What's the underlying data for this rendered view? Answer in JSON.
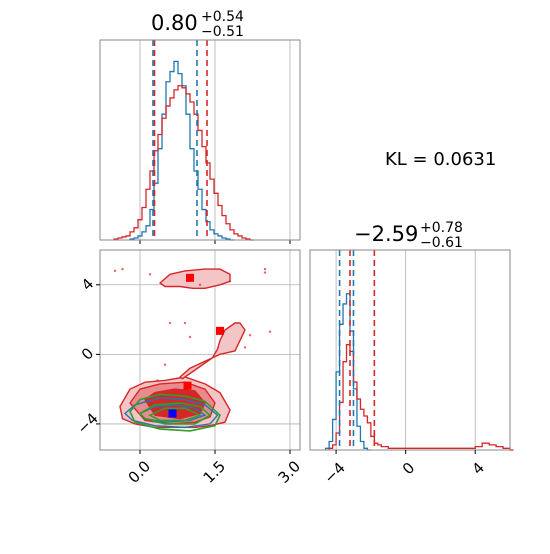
{
  "colors": {
    "red": "#d62728",
    "blue": "#1f77b4",
    "green": "#2ca02c",
    "red_fill_light": "#f4c5c6",
    "red_fill_mid": "#e98a8d",
    "red_fill_dark": "#d62728",
    "square_red": "#ff0000",
    "square_blue": "#0000ff",
    "grid": "#b0b0b0",
    "axis": "#888888"
  },
  "annotation": {
    "kl_text": "KL = 0.0631"
  },
  "chart_data": [
    {
      "type": "line",
      "panel": "marginal-x",
      "title_main": "0.80",
      "title_sup": "+0.54",
      "title_sub": "−0.51",
      "xlim": [
        -0.8,
        3.2
      ],
      "grid": true,
      "series": [
        {
          "color_key": "blue",
          "x": [
            -0.16,
            -0.08,
            0.0,
            0.08,
            0.16,
            0.24,
            0.32,
            0.4,
            0.48,
            0.56,
            0.64,
            0.72,
            0.8,
            0.88,
            0.96,
            1.04,
            1.12,
            1.2,
            1.28,
            1.36,
            1.44,
            1.52,
            1.6,
            1.68,
            1.76,
            1.84
          ],
          "values": [
            0.5,
            1,
            2,
            4,
            7,
            15,
            28,
            45,
            62,
            78,
            83,
            88,
            82,
            76,
            62,
            45,
            34,
            25,
            15,
            9,
            5,
            3,
            2,
            1,
            0.5,
            0
          ]
        },
        {
          "color_key": "red",
          "x": [
            -0.48,
            -0.4,
            -0.32,
            -0.24,
            -0.16,
            -0.08,
            0.0,
            0.08,
            0.16,
            0.24,
            0.32,
            0.4,
            0.48,
            0.56,
            0.64,
            0.72,
            0.8,
            0.88,
            0.96,
            1.04,
            1.12,
            1.2,
            1.28,
            1.36,
            1.44,
            1.52,
            1.6,
            1.68,
            1.76,
            1.84,
            1.92,
            2.0,
            2.08,
            2.16,
            2.24
          ],
          "values": [
            0.5,
            1,
            1.5,
            2,
            4,
            6,
            10,
            16,
            25,
            34,
            44,
            52,
            60,
            66,
            70,
            74,
            76,
            75,
            72,
            68,
            62,
            54,
            46,
            38,
            30,
            23,
            17,
            12,
            8,
            5,
            3,
            2,
            1,
            0.5,
            0
          ]
        }
      ],
      "quantile_lines": [
        {
          "color_key": "blue",
          "x": 0.26
        },
        {
          "color_key": "blue",
          "x": 1.14
        },
        {
          "color_key": "red",
          "x": 0.29
        },
        {
          "color_key": "red",
          "x": 1.34
        }
      ]
    },
    {
      "type": "line",
      "panel": "marginal-y",
      "title_main": "−2.59",
      "title_sup": "+0.78",
      "title_sub": "−0.61",
      "xlim": [
        -5.5,
        6.0
      ],
      "xticks": [
        -4,
        0,
        4
      ],
      "xtick_labels": [
        "−4",
        "0",
        "4"
      ],
      "grid": true,
      "series": [
        {
          "color_key": "blue",
          "x": [
            -4.6,
            -4.4,
            -4.2,
            -4.0,
            -3.8,
            -3.6,
            -3.4,
            -3.2,
            -3.0,
            -2.8,
            -2.6,
            -2.4,
            -2.2
          ],
          "values": [
            1,
            5,
            18,
            46,
            74,
            86,
            92,
            70,
            36,
            14,
            5,
            1,
            0
          ]
        },
        {
          "color_key": "red",
          "x": [
            -4.4,
            -4.2,
            -4.0,
            -3.8,
            -3.6,
            -3.4,
            -3.2,
            -3.0,
            -2.8,
            -2.6,
            -2.4,
            -2.2,
            -2.0,
            -1.8,
            -1.6,
            -1.4,
            -1.0,
            0.0,
            1.0,
            2.0,
            3.0,
            4.0,
            4.4,
            4.8,
            5.2,
            5.6,
            6.0
          ],
          "values": [
            1,
            3,
            10,
            28,
            52,
            62,
            58,
            40,
            30,
            24,
            20,
            16,
            8,
            4,
            3,
            2,
            1,
            1,
            1,
            1,
            1,
            2,
            4,
            3,
            2,
            1,
            0
          ]
        }
      ],
      "quantile_lines": [
        {
          "color_key": "blue",
          "x": -3.8
        },
        {
          "color_key": "blue",
          "x": -3.0
        },
        {
          "color_key": "red",
          "x": -3.2
        },
        {
          "color_key": "red",
          "x": -1.8
        }
      ]
    },
    {
      "type": "scatter",
      "panel": "joint",
      "xlim": [
        -0.8,
        3.2
      ],
      "ylim": [
        -5.5,
        6.0
      ],
      "xticks": [
        0.0,
        1.5,
        3.0
      ],
      "xtick_labels": [
        "0.0",
        "1.5",
        "3.0"
      ],
      "yticks": [
        -4,
        0,
        4
      ],
      "ytick_labels": [
        "−4",
        "0",
        "4"
      ],
      "grid": true,
      "red_contours": [
        {
          "level": "outer",
          "x": [
            -0.4,
            -0.2,
            0.1,
            0.5,
            0.9,
            1.3,
            1.6,
            1.8,
            1.7,
            1.4,
            1.1,
            0.7,
            0.3,
            -0.1,
            -0.35,
            -0.4
          ],
          "y": [
            -3.0,
            -2.0,
            -1.6,
            -1.5,
            -1.3,
            -1.7,
            -2.2,
            -3.2,
            -3.9,
            -4.1,
            -4.2,
            -4.2,
            -4.2,
            -4.0,
            -3.7,
            -3.0
          ]
        },
        {
          "level": "outer",
          "x": [
            0.8,
            1.0,
            1.3,
            1.6,
            1.9,
            2.0,
            2.1,
            2.0,
            1.9,
            1.7,
            1.6,
            1.55,
            1.45,
            1.2,
            1.0,
            0.85,
            0.8
          ],
          "y": [
            -1.3,
            -0.8,
            -0.4,
            0.0,
            0.2,
            0.8,
            1.4,
            1.8,
            1.8,
            1.4,
            0.8,
            0.3,
            -0.2,
            -0.7,
            -1.1,
            -1.4,
            -1.3
          ]
        },
        {
          "level": "outer",
          "x": [
            0.4,
            0.6,
            0.9,
            1.3,
            1.6,
            1.8,
            1.8,
            1.6,
            1.3,
            1.05,
            0.8,
            0.5,
            0.4
          ],
          "y": [
            4.1,
            4.6,
            4.8,
            4.9,
            4.9,
            4.6,
            4.2,
            4.0,
            3.8,
            3.8,
            3.9,
            3.9,
            4.1
          ]
        },
        {
          "level": "mid",
          "x": [
            -0.2,
            0.0,
            0.4,
            0.9,
            1.3,
            1.5,
            1.4,
            1.1,
            0.6,
            0.1,
            -0.2
          ],
          "y": [
            -2.8,
            -2.0,
            -1.7,
            -1.6,
            -2.0,
            -2.8,
            -3.6,
            -3.9,
            -4.0,
            -3.8,
            -2.8
          ]
        },
        {
          "level": "inner",
          "x": [
            0.1,
            0.3,
            0.7,
            1.1,
            1.3,
            1.2,
            0.8,
            0.3,
            0.1
          ],
          "y": [
            -2.6,
            -2.2,
            -2.0,
            -2.1,
            -2.8,
            -3.4,
            -3.7,
            -3.5,
            -2.6
          ]
        }
      ],
      "blue_contours": [
        {
          "x": [
            -0.3,
            -0.1,
            0.4,
            0.9,
            1.3,
            1.55,
            1.4,
            0.9,
            0.3,
            -0.15,
            -0.3
          ],
          "y": [
            -3.4,
            -2.9,
            -2.5,
            -2.6,
            -2.9,
            -3.5,
            -4.0,
            -4.2,
            -4.1,
            -3.8,
            -3.4
          ]
        },
        {
          "x": [
            0.0,
            0.3,
            0.7,
            1.1,
            1.3,
            1.0,
            0.5,
            0.1,
            0.0
          ],
          "y": [
            -3.4,
            -3.0,
            -2.9,
            -3.1,
            -3.5,
            -3.8,
            -3.9,
            -3.7,
            -3.4
          ]
        }
      ],
      "green_contours": [
        {
          "x": [
            -0.2,
            0.0,
            0.4,
            0.9,
            1.3,
            1.6,
            1.5,
            1.0,
            0.4,
            -0.1,
            -0.2
          ],
          "y": [
            -3.3,
            -2.6,
            -2.3,
            -2.4,
            -2.7,
            -3.5,
            -4.1,
            -4.4,
            -4.3,
            -3.9,
            -3.3
          ]
        },
        {
          "x": [
            0.0,
            0.3,
            0.8,
            1.2,
            1.4,
            1.1,
            0.5,
            0.1,
            0.0
          ],
          "y": [
            -3.4,
            -2.9,
            -2.8,
            -3.0,
            -3.5,
            -4.0,
            -4.0,
            -3.7,
            -3.4
          ]
        },
        {
          "x": [
            0.2,
            0.5,
            0.9,
            1.2,
            0.9,
            0.4,
            0.2
          ],
          "y": [
            -3.5,
            -3.1,
            -3.1,
            -3.5,
            -3.8,
            -3.8,
            -3.5
          ]
        }
      ],
      "scatter_points": [
        {
          "x": -0.5,
          "y": 4.8
        },
        {
          "x": -0.35,
          "y": 4.9
        },
        {
          "x": 0.2,
          "y": 4.6
        },
        {
          "x": 2.5,
          "y": 4.9
        },
        {
          "x": 2.5,
          "y": 4.7
        },
        {
          "x": 1.8,
          "y": 4.2
        },
        {
          "x": 1.2,
          "y": 4.0
        },
        {
          "x": 0.6,
          "y": 1.8
        },
        {
          "x": 0.9,
          "y": 1.8
        },
        {
          "x": 2.2,
          "y": 1.1
        },
        {
          "x": 2.6,
          "y": 1.3
        },
        {
          "x": 0.5,
          "y": -0.6
        },
        {
          "x": 0.35,
          "y": -1.5
        },
        {
          "x": 2.1,
          "y": 0.4
        },
        {
          "x": 1.0,
          "y": 1.0
        }
      ],
      "markers": [
        {
          "color_key": "square_red",
          "x": 1.0,
          "y": 4.4
        },
        {
          "color_key": "square_red",
          "x": 1.6,
          "y": 1.35
        },
        {
          "color_key": "square_red",
          "x": 0.95,
          "y": -1.8
        },
        {
          "color_key": "square_blue",
          "x": 0.65,
          "y": -3.4
        }
      ]
    }
  ]
}
